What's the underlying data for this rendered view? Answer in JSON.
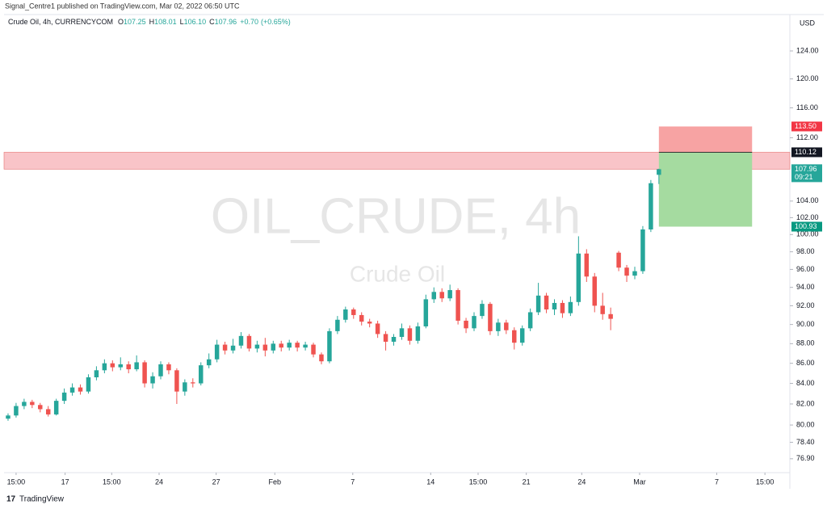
{
  "chart_data": {
    "type": "candlestick",
    "header": "Signal_Centre1 published on TradingView.com, Mar 02, 2022 06:50 UTC",
    "legend": {
      "title": "Crude Oil, 4h, CURRENCYCOM",
      "o": "O",
      "open": 107.25,
      "h": "H",
      "high": 108.01,
      "l": "L",
      "low": 106.1,
      "low_label": "106.10",
      "c": "C",
      "close": 107.96,
      "change": {
        "value": 0.7,
        "label": "+0.70"
      },
      "change_pct": {
        "value": 0.65,
        "label": "(+0.65%)"
      }
    },
    "watermark": "OIL_CRUDE, 4h",
    "watermark_sub": "Crude Oil",
    "currency": "USD",
    "footer": "TradingView",
    "up_color": "#26a69a",
    "down_color": "#ef5350",
    "log_scale": true,
    "grid": false,
    "ylim": [
      75.66,
      129.4
    ],
    "yticks": [
      {
        "value": 76.9,
        "label": "76.90"
      },
      {
        "value": 78.4,
        "label": "78.40"
      },
      {
        "value": 80,
        "label": "80.00"
      },
      {
        "value": 82,
        "label": "82.00"
      },
      {
        "value": 84,
        "label": "84.00"
      },
      {
        "value": 86,
        "label": "86.00"
      },
      {
        "value": 88,
        "label": "88.00"
      },
      {
        "value": 90,
        "label": "90.00"
      },
      {
        "value": 92,
        "label": "92.00"
      },
      {
        "value": 94,
        "label": "94.00"
      },
      {
        "value": 96,
        "label": "96.00"
      },
      {
        "value": 98,
        "label": "98.00"
      },
      {
        "value": 100,
        "label": "100.00"
      },
      {
        "value": 102,
        "label": "102.00"
      },
      {
        "value": 104,
        "label": "104.00"
      },
      {
        "value": 112,
        "label": "112.00"
      },
      {
        "value": 116,
        "label": "116.00"
      },
      {
        "value": 120,
        "label": "120.00"
      },
      {
        "value": 124,
        "label": "124.00"
      }
    ],
    "xlim": [
      -0.5,
      97.3
    ],
    "xticks": [
      {
        "value": 1,
        "label": "15:00"
      },
      {
        "value": 7.1,
        "label": "17"
      },
      {
        "value": 12.9,
        "label": "15:00"
      },
      {
        "value": 18.8,
        "label": "24"
      },
      {
        "value": 25.9,
        "label": "27"
      },
      {
        "value": 33.2,
        "label": "Feb"
      },
      {
        "value": 42.9,
        "label": "7"
      },
      {
        "value": 52.6,
        "label": "14"
      },
      {
        "value": 58.5,
        "label": "15:00"
      },
      {
        "value": 64.5,
        "label": "21"
      },
      {
        "value": 71.4,
        "label": "24"
      },
      {
        "value": 78.6,
        "label": "Mar"
      },
      {
        "value": 88.2,
        "label": "7"
      },
      {
        "value": 94.2,
        "label": "15:00"
      }
    ],
    "open": [
      80.6,
      80.9,
      81.8,
      82.2,
      81.9,
      81.5,
      81.0,
      82.3,
      83.1,
      83.6,
      83.2,
      84.6,
      85.3,
      86.0,
      85.6,
      85.9,
      85.4,
      86.1,
      84.0,
      84.7,
      85.9,
      85.3,
      83.2,
      84.1,
      84.0,
      85.8,
      86.4,
      87.9,
      87.3,
      87.8,
      88.8,
      87.5,
      87.9,
      87.3,
      88.0,
      87.6,
      88.1,
      87.6,
      87.9,
      86.9,
      86.2,
      89.3,
      90.5,
      91.6,
      91.0,
      90.3,
      90.1,
      89.0,
      88.2,
      88.7,
      89.6,
      88.3,
      89.8,
      92.7,
      93.5,
      92.8,
      93.7,
      90.4,
      89.6,
      90.9,
      92.2,
      89.3,
      90.2,
      89.4,
      88.1,
      89.6,
      91.3,
      93.1,
      91.6,
      92.3,
      91.2,
      92.4,
      97.8,
      95.2,
      92.0,
      91.1,
      97.9,
      96.2,
      95.3,
      95.8,
      100.6,
      107.25
    ],
    "high": [
      81.1,
      82.1,
      82.5,
      82.4,
      82.1,
      81.8,
      82.5,
      83.5,
      84.0,
      83.9,
      84.9,
      85.7,
      86.4,
      86.3,
      86.6,
      86.2,
      86.8,
      86.3,
      85.1,
      86.2,
      86.1,
      85.5,
      84.4,
      84.5,
      86.1,
      87.0,
      88.4,
      88.2,
      88.5,
      89.2,
      89.0,
      88.3,
      88.6,
      88.3,
      88.3,
      88.4,
      88.3,
      88.2,
      88.1,
      87.1,
      89.6,
      90.9,
      91.9,
      91.8,
      91.3,
      90.6,
      90.4,
      89.3,
      89.0,
      90.1,
      89.9,
      90.2,
      93.2,
      94.0,
      93.9,
      94.3,
      93.9,
      90.7,
      91.3,
      92.6,
      92.4,
      90.6,
      90.5,
      89.7,
      89.9,
      91.7,
      94.5,
      93.4,
      92.7,
      92.6,
      93.0,
      99.8,
      98.3,
      95.6,
      93.4,
      91.8,
      98.1,
      96.5,
      96.3,
      101.0,
      106.6,
      108.01
    ],
    "low": [
      80.4,
      80.7,
      81.5,
      81.6,
      81.2,
      80.8,
      80.9,
      82.0,
      82.8,
      82.9,
      83.0,
      84.3,
      85.0,
      85.2,
      85.3,
      85.0,
      85.2,
      83.6,
      83.5,
      84.4,
      84.9,
      82.0,
      82.8,
      83.6,
      83.8,
      85.5,
      86.1,
      86.9,
      87.0,
      87.5,
      87.2,
      87.1,
      86.7,
      87.0,
      87.2,
      87.3,
      87.2,
      87.3,
      86.6,
      85.9,
      86.0,
      89.0,
      90.2,
      90.6,
      89.9,
      89.7,
      88.6,
      87.3,
      87.8,
      88.4,
      87.9,
      88.0,
      89.6,
      92.3,
      92.4,
      92.5,
      90.0,
      89.1,
      89.3,
      90.6,
      88.9,
      88.8,
      89.0,
      87.4,
      87.8,
      89.3,
      91.0,
      91.2,
      91.0,
      90.7,
      90.9,
      92.0,
      94.6,
      91.3,
      90.5,
      89.4,
      95.8,
      94.6,
      94.9,
      95.5,
      100.3,
      106.1
    ],
    "close": [
      80.9,
      81.8,
      82.2,
      81.9,
      81.5,
      81.0,
      82.3,
      83.1,
      83.6,
      83.2,
      84.6,
      85.3,
      86.0,
      85.6,
      85.9,
      85.4,
      86.1,
      84.0,
      84.7,
      85.9,
      85.3,
      83.2,
      84.1,
      84.0,
      85.8,
      86.4,
      87.9,
      87.3,
      87.8,
      88.8,
      87.5,
      87.9,
      87.3,
      88.0,
      87.6,
      88.1,
      87.6,
      87.9,
      86.9,
      86.2,
      89.3,
      90.5,
      91.6,
      91.0,
      90.3,
      90.1,
      89.0,
      88.2,
      88.7,
      89.6,
      88.3,
      89.8,
      92.7,
      93.5,
      92.8,
      93.7,
      90.4,
      89.6,
      90.9,
      92.2,
      89.3,
      90.2,
      89.4,
      88.1,
      89.6,
      91.3,
      93.1,
      91.6,
      92.3,
      91.2,
      92.4,
      97.8,
      95.2,
      92.0,
      91.1,
      90.6,
      96.2,
      95.3,
      95.8,
      100.6,
      106.2,
      107.96
    ],
    "zone": {
      "high": 110.12,
      "low": 107.96,
      "color": "#f9c4c8"
    },
    "position": {
      "start": 81,
      "end": 92.6,
      "stop": {
        "value": 113.5,
        "label": "113.50"
      },
      "entry": {
        "value": 110.12,
        "label": "110.12"
      },
      "target": {
        "value": 100.93,
        "label": "100.93"
      },
      "stop_color": "#f7a3a3",
      "target_color": "#a5dba0"
    },
    "last_price": {
      "value": 107.96,
      "label": "107.96"
    },
    "countdown": "09:21"
  }
}
